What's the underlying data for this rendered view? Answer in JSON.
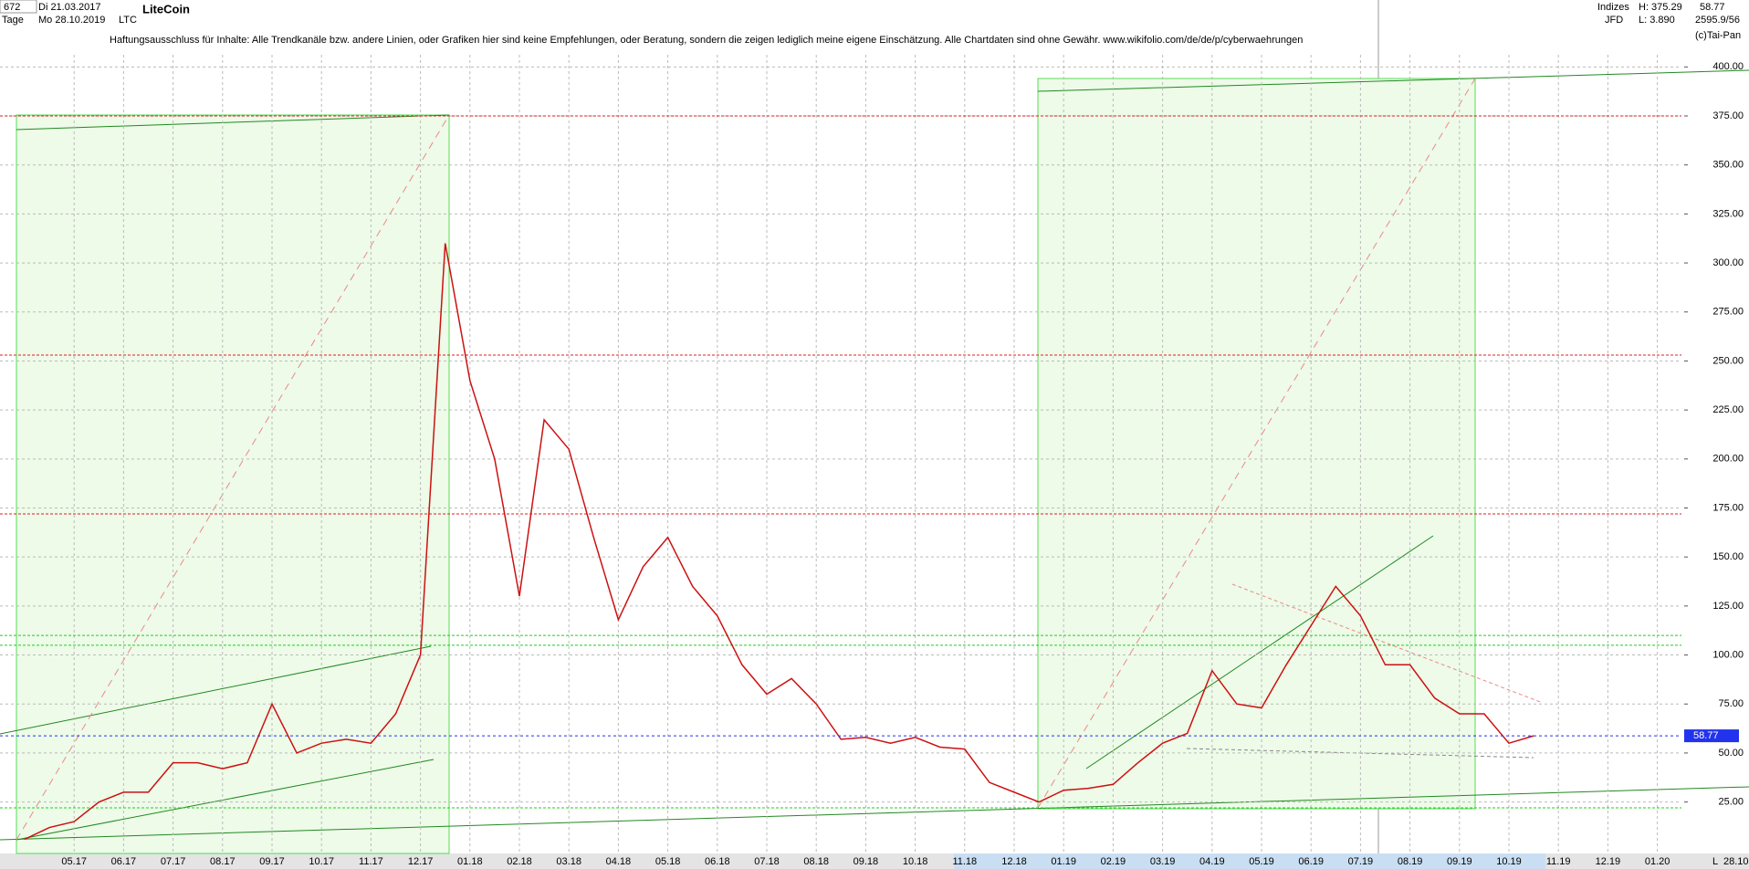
{
  "header": {
    "bars": "672",
    "start": "Di 21.03.2017",
    "period": "Tage",
    "end": "Mo 28.10.2019",
    "name": "LiteCoin",
    "symbol": "LTC",
    "disclaimer": "Haftungsausschluss für Inhalte: Alle Trendkanäle bzw. andere Linien, oder Grafiken hier sind keine Empfehlungen, oder Beratung, sondern die zeigen lediglich meine eigene Einschätzung. Alle Chartdaten sind ohne Gewähr.  www.wikifolio.com/de/de/p/cyberwaehrungen",
    "group": "Indizes",
    "source": "JFD",
    "high": "H: 375.29",
    "low": "L: 3.890",
    "ratio": "2595.9/56",
    "copyright": "(c)Tai-Pan",
    "corner": "L",
    "date": "28.10.19"
  },
  "chart_data": {
    "type": "line",
    "color": "#cc1111",
    "grid": true,
    "categories": [
      null,
      null,
      "05.17",
      null,
      "06.17",
      null,
      "07.17",
      null,
      "08.17",
      null,
      "09.17",
      null,
      "10.17",
      null,
      "11.17",
      null,
      "12.17",
      null,
      "01.18",
      null,
      "02.18",
      null,
      "03.18",
      null,
      "04.18",
      null,
      "05.18",
      null,
      "06.18",
      null,
      "07.18",
      null,
      "08.18",
      null,
      "09.18",
      null,
      "10.18",
      null,
      "11.18",
      null,
      "12.18",
      null,
      "01.19",
      null,
      "02.19",
      null,
      "03.19",
      null,
      "04.19",
      null,
      "05.19",
      null,
      "06.19",
      null,
      "07.19",
      null,
      "08.19",
      null,
      "09.19",
      null,
      "10.19",
      null,
      "11.19",
      null,
      "12.19",
      null,
      "01.20"
    ],
    "values": [
      6,
      12,
      15,
      25,
      30,
      30,
      45,
      45,
      42,
      45,
      75,
      50,
      55,
      57,
      55,
      70,
      100,
      310,
      240,
      200,
      130,
      220,
      205,
      160,
      118,
      145,
      160,
      135,
      120,
      95,
      80,
      88,
      75,
      57,
      58,
      55,
      58,
      53,
      52,
      35,
      30,
      25,
      31,
      32,
      34,
      45,
      55,
      60,
      92,
      75,
      73,
      95,
      115,
      135,
      120,
      95,
      95,
      78,
      70,
      70,
      55,
      58.77,
      null,
      null,
      null,
      null,
      null
    ],
    "last": 58.77,
    "hlines": [
      {
        "value": 375,
        "color": "#dd2222"
      },
      {
        "value": 253,
        "color": "#dd2222"
      },
      {
        "value": 172,
        "color": "#dd2222"
      },
      {
        "value": 110,
        "color": "#22cc22"
      },
      {
        "value": 105,
        "color": "#22cc22"
      },
      {
        "value": 22,
        "color": "#22cc22"
      }
    ],
    "ylim": [
      3.4,
      423.9
    ],
    "yticks": [
      {
        "value": 25,
        "label": "25.00"
      },
      {
        "value": 50,
        "label": "50.00"
      },
      {
        "value": 75,
        "label": "75.00"
      },
      {
        "value": 100,
        "label": "100.00"
      },
      {
        "value": 125,
        "label": "125.00"
      },
      {
        "value": 150,
        "label": "150.00"
      },
      {
        "value": 175,
        "label": "175.00"
      },
      {
        "value": 200,
        "label": "200.00"
      },
      {
        "value": 225,
        "label": "225.00"
      },
      {
        "value": 250,
        "label": "250.00"
      },
      {
        "value": 275,
        "label": "275.00"
      },
      {
        "value": 300,
        "label": "300.00"
      },
      {
        "value": 325,
        "label": "325.00"
      },
      {
        "value": 350,
        "label": "350.00"
      },
      {
        "value": 375,
        "label": "375.00"
      },
      {
        "value": 400,
        "label": "400.00"
      }
    ]
  }
}
